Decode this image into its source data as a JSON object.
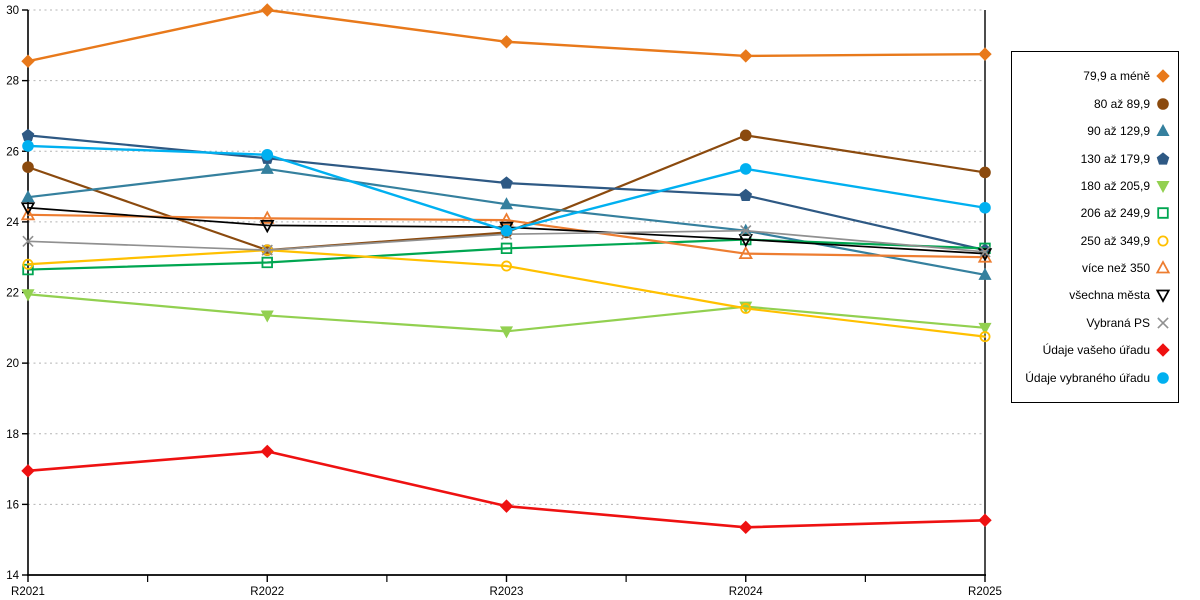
{
  "chart_data": {
    "type": "line",
    "title": "",
    "xlabel": "",
    "ylabel": "",
    "categories": [
      "R2021",
      "R2022",
      "R2023",
      "R2024",
      "R2025"
    ],
    "ylim": [
      14,
      30
    ],
    "yticks": [
      14,
      16,
      18,
      20,
      22,
      24,
      26,
      28,
      30
    ],
    "grid": "horizontal-dashed",
    "legend_position": "right-box",
    "axis_color": "#000000",
    "gridline_color": "#b4b4b4",
    "series": [
      {
        "name": "79,9 a méně",
        "color": "#e8791b",
        "marker": "diamond",
        "filled": true,
        "line_width": 2.4,
        "values": [
          28.55,
          30.0,
          29.1,
          28.7,
          28.75
        ]
      },
      {
        "name": "80 až 89,9",
        "color": "#8b4a0e",
        "marker": "circle",
        "filled": true,
        "line_width": 2.2,
        "values": [
          25.55,
          23.2,
          23.7,
          26.45,
          25.4
        ]
      },
      {
        "name": "90 až 129,9",
        "color": "#35809e",
        "marker": "triangle-up",
        "filled": true,
        "line_width": 2.2,
        "values": [
          24.7,
          25.5,
          24.5,
          23.75,
          22.5
        ]
      },
      {
        "name": "130 až 179,9",
        "color": "#2e5984",
        "marker": "pentagon",
        "filled": true,
        "line_width": 2.2,
        "values": [
          26.45,
          25.8,
          25.1,
          24.75,
          23.2
        ]
      },
      {
        "name": "180 až 205,9",
        "color": "#92d050",
        "marker": "triangle-down",
        "filled": true,
        "line_width": 2.2,
        "values": [
          21.95,
          21.35,
          20.9,
          21.6,
          21.0
        ]
      },
      {
        "name": "206 až 249,9",
        "color": "#00a651",
        "marker": "square",
        "filled": false,
        "line_width": 2.2,
        "values": [
          22.65,
          22.85,
          23.25,
          23.5,
          23.25
        ]
      },
      {
        "name": "250 až 349,9",
        "color": "#ffc000",
        "marker": "circle",
        "filled": false,
        "line_width": 2.2,
        "values": [
          22.8,
          23.2,
          22.75,
          21.55,
          20.75
        ]
      },
      {
        "name": "více než 350",
        "color": "#ed7d31",
        "marker": "triangle-up",
        "filled": false,
        "line_width": 2.2,
        "values": [
          24.2,
          24.1,
          24.05,
          23.1,
          23.0
        ]
      },
      {
        "name": "všechna města",
        "color": "#000000",
        "marker": "triangle-down",
        "filled": false,
        "line_width": 1.7,
        "values": [
          24.4,
          23.9,
          23.85,
          23.5,
          23.1
        ]
      },
      {
        "name": "Vybraná PS",
        "color": "#909090",
        "marker": "x",
        "filled": false,
        "line_width": 1.7,
        "values": [
          23.45,
          23.2,
          23.65,
          23.75,
          23.15
        ]
      },
      {
        "name": "Údaje vašeho úřadu",
        "color": "#ee1111",
        "marker": "diamond",
        "filled": true,
        "line_width": 2.6,
        "values": [
          16.95,
          17.5,
          15.95,
          15.35,
          15.55
        ]
      },
      {
        "name": "Údaje vybraného úřadu",
        "color": "#00b0f0",
        "marker": "circle",
        "filled": true,
        "line_width": 2.4,
        "values": [
          26.15,
          25.9,
          23.75,
          25.5,
          24.4
        ]
      }
    ]
  }
}
